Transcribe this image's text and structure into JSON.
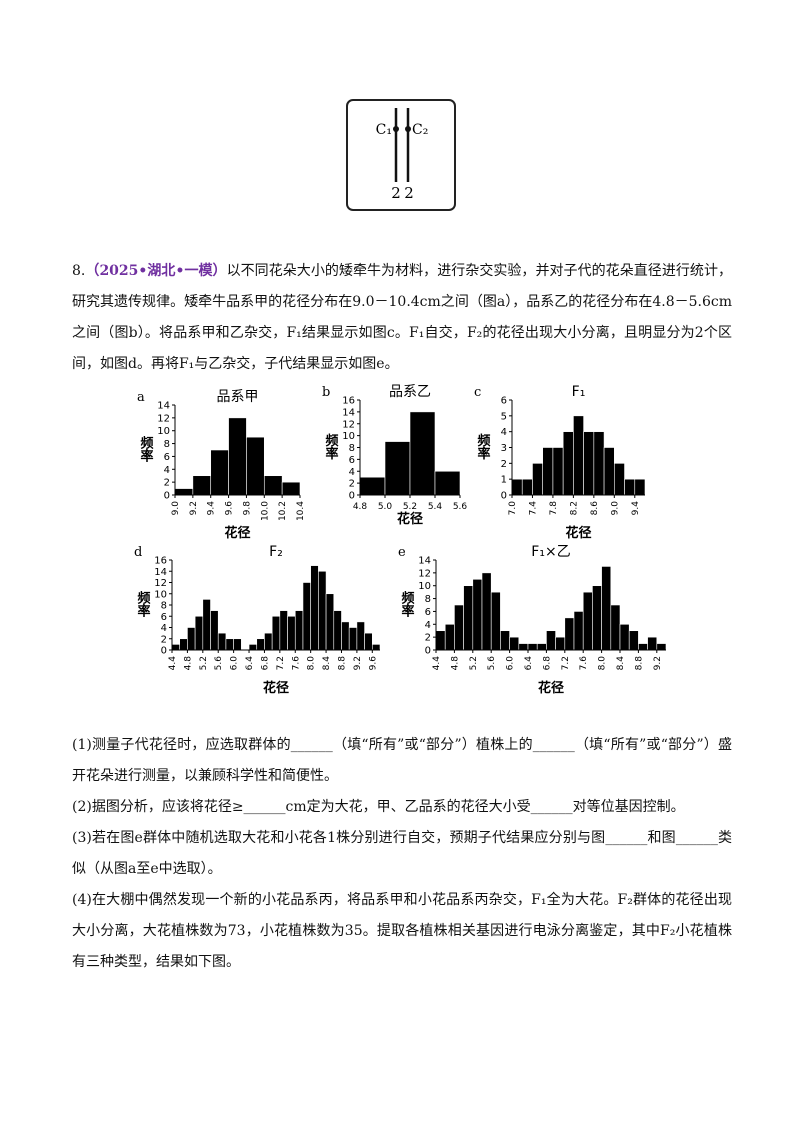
{
  "figure": {
    "left_label": "C₁",
    "right_label": "C₂",
    "left_number": "2",
    "right_number": "2"
  },
  "question": {
    "number": "8.",
    "source": "（2025•湖北•一模）",
    "text": "以不同花朵大小的矮牵牛为材料，进行杂交实验，并对子代的花朵直径进行统计，研究其遗传规律。矮牵牛品系甲的花径分布在9.0－10.4cm之间（图a），品系乙的花径分布在4.8－5.6cm之间（图b）。将品系甲和乙杂交，F₁结果显示如图c。F₁自交，F₂的花径出现大小分离，且明显分为2个区间，如图d。再将F₁与乙杂交，子代结果显示如图e。"
  },
  "chart_data": [
    {
      "type": "histogram",
      "panel": "a",
      "title": "品系甲",
      "y_label": "频率",
      "x_label": "花径",
      "color": "#000000",
      "bins": [
        9.0,
        9.2,
        9.4,
        9.6,
        9.8,
        10.0,
        10.2,
        10.4
      ],
      "values": [
        1,
        3,
        7,
        12,
        9,
        3,
        2
      ],
      "xlim": [
        9.0,
        10.4
      ],
      "xticks": [
        {
          "value": 9,
          "label": "9.0"
        },
        9.2,
        9.4,
        9.6,
        9.8,
        {
          "value": 10,
          "label": "10.0"
        },
        10.2,
        10.4
      ],
      "ylim": [
        0,
        14
      ],
      "yticks": [
        0,
        2,
        4,
        6,
        8,
        10,
        12,
        14
      ]
    },
    {
      "type": "histogram",
      "panel": "b",
      "title": "品系乙",
      "y_label": "频率",
      "x_label": "花径",
      "color": "#000000",
      "bins": [
        4.8,
        5.0,
        5.2,
        5.4,
        5.6
      ],
      "values": [
        3,
        9,
        14,
        4
      ],
      "xlim": [
        4.8,
        5.6
      ],
      "xticks": [
        4.8,
        {
          "value": 5,
          "label": "5.0"
        },
        5.2,
        5.4,
        5.6
      ],
      "ylim": [
        0,
        16
      ],
      "yticks": [
        0,
        2,
        4,
        6,
        8,
        10,
        12,
        14,
        16
      ]
    },
    {
      "type": "histogram",
      "panel": "c",
      "title": "F₁",
      "y_label": "频率",
      "x_label": "花径",
      "color": "#000000",
      "bins": [
        7.0,
        7.2,
        7.4,
        7.6,
        7.8,
        8.0,
        8.2,
        8.4,
        8.6,
        8.8,
        9.0,
        9.2,
        9.4,
        9.6
      ],
      "values": [
        1,
        1,
        2,
        3,
        3,
        4,
        5,
        4,
        4,
        3,
        2,
        1,
        1
      ],
      "xlim": [
        7.0,
        9.6
      ],
      "xticks": [
        {
          "value": 7,
          "label": "7.0"
        },
        7.4,
        7.8,
        8.2,
        8.6,
        {
          "value": 9,
          "label": "9.0"
        },
        9.4
      ],
      "ylim": [
        0,
        6
      ],
      "yticks": [
        0,
        1,
        2,
        3,
        4,
        5,
        6
      ]
    },
    {
      "type": "histogram",
      "panel": "d",
      "title": "F₂",
      "y_label": "频率",
      "x_label": "花径",
      "color": "#000000",
      "bins": [
        4.4,
        4.6,
        4.8,
        5.0,
        5.2,
        5.4,
        5.6,
        5.8,
        6.0,
        6.2,
        6.4,
        6.6,
        6.8,
        7.0,
        7.2,
        7.4,
        7.6,
        7.8,
        8.0,
        8.2,
        8.4,
        8.6,
        8.8,
        9.0,
        9.2,
        9.4,
        9.6,
        9.8
      ],
      "values": [
        1,
        2,
        4,
        6,
        9,
        7,
        3,
        2,
        2,
        0,
        1,
        2,
        3,
        6,
        7,
        6,
        7,
        12,
        15,
        14,
        10,
        7,
        5,
        4,
        5,
        3,
        1
      ],
      "xlim": [
        4.4,
        9.8
      ],
      "xticks": [
        4.4,
        4.8,
        5.2,
        5.6,
        {
          "value": 6,
          "label": "6.0"
        },
        6.4,
        6.8,
        7.2,
        7.6,
        {
          "value": 8,
          "label": "8.0"
        },
        8.4,
        8.8,
        9.2,
        9.6
      ],
      "ylim": [
        0,
        16
      ],
      "yticks": [
        0,
        2,
        4,
        6,
        8,
        10,
        12,
        14,
        16
      ]
    },
    {
      "type": "histogram",
      "panel": "e",
      "title": "F₁×乙",
      "y_label": "频率",
      "x_label": "花径",
      "color": "#000000",
      "bins": [
        4.4,
        4.6,
        4.8,
        5.0,
        5.2,
        5.4,
        5.6,
        5.8,
        6.0,
        6.2,
        6.4,
        6.6,
        6.8,
        7.0,
        7.2,
        7.4,
        7.6,
        7.8,
        8.0,
        8.2,
        8.4,
        8.6,
        8.8,
        9.0,
        9.2,
        9.4
      ],
      "values": [
        3,
        4,
        7,
        10,
        11,
        12,
        9,
        3,
        2,
        1,
        1,
        1,
        3,
        2,
        5,
        6,
        9,
        10,
        13,
        7,
        4,
        3,
        1,
        2,
        1
      ],
      "xlim": [
        4.4,
        9.4
      ],
      "xticks": [
        4.4,
        4.8,
        5.2,
        5.6,
        {
          "value": 6,
          "label": "6.0"
        },
        6.4,
        6.8,
        7.2,
        7.6,
        {
          "value": 8,
          "label": "8.0"
        },
        8.4,
        8.8,
        9.2
      ],
      "ylim": [
        0,
        14
      ],
      "yticks": [
        0,
        2,
        4,
        6,
        8,
        10,
        12,
        14
      ]
    }
  ],
  "sub_questions": [
    "(1)测量子代花径时，应选取群体的______（填“所有”或“部分”）植株上的______（填“所有”或“部分”）盛开花朵进行测量，以兼顾科学性和简便性。",
    "(2)据图分析，应该将花径≥______cm定为大花，甲、乙品系的花径大小受______对等位基因控制。",
    "(3)若在图e群体中随机选取大花和小花各1株分别进行自交，预期子代结果应分别与图______和图______类似（从图a至e中选取）。",
    "(4)在大棚中偶然发现一个新的小花品系丙，将品系甲和小花品系丙杂交，F₁全为大花。F₂群体的花径出现大小分离，大花植株数为73，小花植株数为35。提取各植株相关基因进行电泳分离鉴定，其中F₂小花植株有三种类型，结果如下图。"
  ]
}
